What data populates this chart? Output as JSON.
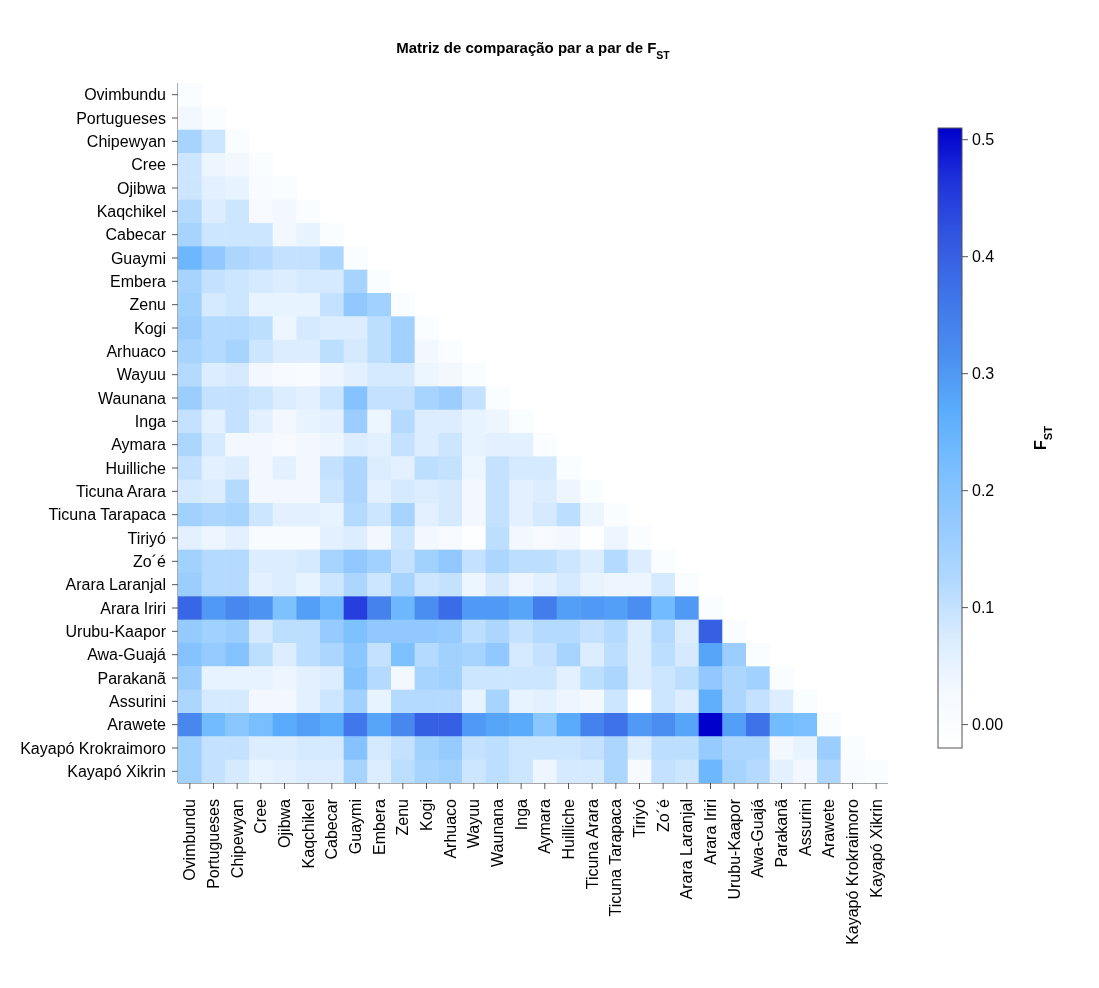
{
  "chart_data": {
    "type": "heatmap",
    "title": "Matriz de comparação par a par de F$_{ST}$",
    "clabel": "F$_{ST}$",
    "categories": [
      "Ovimbundu",
      "Portugueses",
      "Chipewyan",
      "Cree",
      "Ojibwa",
      "Kaqchikel",
      "Cabecar",
      "Guaymi",
      "Embera",
      "Zenu",
      "Kogi",
      "Arhuaco",
      "Wayuu",
      "Waunana",
      "Inga",
      "Aymara",
      "Huilliche",
      "Ticuna Arara",
      "Ticuna Tarapaca",
      "Tiriyó",
      "Zo´é",
      "Arara Laranjal",
      "Arara Iriri",
      "Urubu-Kaapor",
      "Awa-Guajá",
      "Parakanã",
      "Assurini",
      "Arawete",
      "Kayapó Krokraimoro",
      "Kayapó Xikrin"
    ],
    "y_categories": [
      "Ovimbundu",
      "Portugueses",
      "Chipewyan",
      "Cree",
      "Ojibwa",
      "Kaqchikel",
      "Cabecar",
      "Guaymi",
      "Embera",
      "Zenu",
      "Kogi",
      "Arhuaco",
      "Wayuu",
      "Waunana",
      "Inga",
      "Aymara",
      "Huilliche",
      "Ticuna Arara",
      "Ticuna Tarapaca",
      "Tiriyó",
      "Zo´é",
      "Arara Laranjal",
      "Arara Iriri",
      "Urubu-Kaapor",
      "Awa-Guajá",
      "Parakanã",
      "Assurini",
      "Arawete",
      "Kayapó Krokraimoro",
      "Kayapó Xikrin"
    ],
    "cells": [
      [
        0,
        null,
        null,
        null,
        null,
        null,
        null,
        null,
        null,
        null,
        null,
        null,
        null,
        null,
        null,
        null,
        null,
        null,
        null,
        null,
        null,
        null,
        null,
        null,
        null,
        null,
        null,
        null,
        null,
        null
      ],
      [
        0.03,
        0,
        null,
        null,
        null,
        null,
        null,
        null,
        null,
        null,
        null,
        null,
        null,
        null,
        null,
        null,
        null,
        null,
        null,
        null,
        null,
        null,
        null,
        null,
        null,
        null,
        null,
        null,
        null,
        null
      ],
      [
        0.14,
        0.09,
        0,
        null,
        null,
        null,
        null,
        null,
        null,
        null,
        null,
        null,
        null,
        null,
        null,
        null,
        null,
        null,
        null,
        null,
        null,
        null,
        null,
        null,
        null,
        null,
        null,
        null,
        null,
        null
      ],
      [
        0.09,
        0.04,
        0.03,
        0,
        null,
        null,
        null,
        null,
        null,
        null,
        null,
        null,
        null,
        null,
        null,
        null,
        null,
        null,
        null,
        null,
        null,
        null,
        null,
        null,
        null,
        null,
        null,
        null,
        null,
        null
      ],
      [
        0.09,
        0.06,
        0.05,
        0.01,
        0,
        null,
        null,
        null,
        null,
        null,
        null,
        null,
        null,
        null,
        null,
        null,
        null,
        null,
        null,
        null,
        null,
        null,
        null,
        null,
        null,
        null,
        null,
        null,
        null,
        null
      ],
      [
        0.12,
        0.07,
        0.09,
        0.02,
        0.03,
        0,
        null,
        null,
        null,
        null,
        null,
        null,
        null,
        null,
        null,
        null,
        null,
        null,
        null,
        null,
        null,
        null,
        null,
        null,
        null,
        null,
        null,
        null,
        null,
        null
      ],
      [
        0.14,
        0.09,
        0.09,
        0.09,
        0.03,
        0.05,
        0,
        null,
        null,
        null,
        null,
        null,
        null,
        null,
        null,
        null,
        null,
        null,
        null,
        null,
        null,
        null,
        null,
        null,
        null,
        null,
        null,
        null,
        null,
        null
      ],
      [
        0.24,
        0.18,
        0.13,
        0.12,
        0.1,
        0.1,
        0.13,
        0,
        null,
        null,
        null,
        null,
        null,
        null,
        null,
        null,
        null,
        null,
        null,
        null,
        null,
        null,
        null,
        null,
        null,
        null,
        null,
        null,
        null,
        null
      ],
      [
        0.14,
        0.1,
        0.09,
        0.08,
        0.07,
        0.08,
        0.08,
        0.14,
        0,
        null,
        null,
        null,
        null,
        null,
        null,
        null,
        null,
        null,
        null,
        null,
        null,
        null,
        null,
        null,
        null,
        null,
        null,
        null,
        null,
        null
      ],
      [
        0.15,
        0.08,
        0.09,
        0.05,
        0.05,
        0.05,
        0.1,
        0.18,
        0.15,
        0,
        null,
        null,
        null,
        null,
        null,
        null,
        null,
        null,
        null,
        null,
        null,
        null,
        null,
        null,
        null,
        null,
        null,
        null,
        null,
        null
      ],
      [
        0.16,
        0.12,
        0.12,
        0.11,
        0.04,
        0.08,
        0.07,
        0.07,
        0.11,
        0.15,
        0,
        null,
        null,
        null,
        null,
        null,
        null,
        null,
        null,
        null,
        null,
        null,
        null,
        null,
        null,
        null,
        null,
        null,
        null,
        null
      ],
      [
        0.14,
        0.12,
        0.14,
        0.09,
        0.07,
        0.07,
        0.11,
        0.08,
        0.11,
        0.15,
        0.03,
        0,
        null,
        null,
        null,
        null,
        null,
        null,
        null,
        null,
        null,
        null,
        null,
        null,
        null,
        null,
        null,
        null,
        null,
        null
      ],
      [
        0.12,
        0.07,
        0.08,
        0.03,
        0.02,
        0.01,
        0.04,
        0.06,
        0.08,
        0.08,
        0.04,
        0.03,
        0,
        null,
        null,
        null,
        null,
        null,
        null,
        null,
        null,
        null,
        null,
        null,
        null,
        null,
        null,
        null,
        null,
        null
      ],
      [
        0.16,
        0.1,
        0.1,
        0.09,
        0.07,
        0.06,
        0.09,
        0.2,
        0.1,
        0.1,
        0.14,
        0.16,
        0.1,
        0,
        null,
        null,
        null,
        null,
        null,
        null,
        null,
        null,
        null,
        null,
        null,
        null,
        null,
        null,
        null,
        null
      ],
      [
        0.1,
        0.06,
        0.1,
        0.06,
        0.03,
        0.05,
        0.06,
        0.16,
        0.04,
        0.12,
        0.07,
        0.07,
        0.05,
        0.04,
        0,
        null,
        null,
        null,
        null,
        null,
        null,
        null,
        null,
        null,
        null,
        null,
        null,
        null,
        null,
        null
      ],
      [
        0.13,
        0.08,
        0.03,
        0.03,
        0.02,
        0.03,
        0.04,
        0.07,
        0.06,
        0.1,
        0.07,
        0.09,
        0.05,
        0.06,
        0.06,
        0,
        null,
        null,
        null,
        null,
        null,
        null,
        null,
        null,
        null,
        null,
        null,
        null,
        null,
        null
      ],
      [
        0.1,
        0.06,
        0.07,
        0.03,
        0.06,
        0.03,
        0.1,
        0.13,
        0.07,
        0.06,
        0.11,
        0.1,
        0.04,
        0.1,
        0.08,
        0.08,
        0,
        null,
        null,
        null,
        null,
        null,
        null,
        null,
        null,
        null,
        null,
        null,
        null,
        null
      ],
      [
        0.08,
        0.07,
        0.12,
        0.03,
        0.03,
        0.03,
        0.09,
        0.13,
        0.06,
        0.08,
        0.07,
        0.08,
        0.03,
        0.1,
        0.06,
        0.07,
        0.04,
        0,
        null,
        null,
        null,
        null,
        null,
        null,
        null,
        null,
        null,
        null,
        null,
        null
      ],
      [
        0.15,
        0.13,
        0.14,
        0.09,
        0.06,
        0.06,
        0.05,
        0.12,
        0.09,
        0.14,
        0.06,
        0.08,
        0.03,
        0.1,
        0.06,
        0.08,
        0.11,
        0.04,
        0,
        null,
        null,
        null,
        null,
        null,
        null,
        null,
        null,
        null,
        null,
        null
      ],
      [
        0.06,
        0.04,
        0.06,
        0.01,
        0.01,
        0.01,
        0.06,
        0.07,
        0.03,
        0.09,
        0.03,
        0.02,
        -0.01,
        0.11,
        0.03,
        0.02,
        0.03,
        -0.01,
        0.04,
        0,
        null,
        null,
        null,
        null,
        null,
        null,
        null,
        null,
        null,
        null
      ],
      [
        0.15,
        0.12,
        0.12,
        0.07,
        0.07,
        0.08,
        0.14,
        0.18,
        0.15,
        0.1,
        0.15,
        0.18,
        0.1,
        0.13,
        0.11,
        0.11,
        0.09,
        0.07,
        0.12,
        0.07,
        0,
        null,
        null,
        null,
        null,
        null,
        null,
        null,
        null,
        null
      ],
      [
        0.16,
        0.12,
        0.12,
        0.06,
        0.07,
        0.05,
        0.09,
        0.13,
        0.09,
        0.14,
        0.09,
        0.1,
        0.04,
        0.08,
        0.04,
        0.06,
        0.08,
        0.05,
        0.04,
        0.04,
        0.08,
        0,
        null,
        null,
        null,
        null,
        null,
        null,
        null,
        null
      ],
      [
        0.39,
        0.3,
        0.33,
        0.31,
        0.21,
        0.29,
        0.24,
        0.45,
        0.34,
        0.24,
        0.32,
        0.38,
        0.3,
        0.3,
        0.28,
        0.35,
        0.29,
        0.3,
        0.29,
        0.32,
        0.23,
        0.3,
        0,
        null,
        null,
        null,
        null,
        null,
        null,
        null
      ],
      [
        0.17,
        0.15,
        0.16,
        0.08,
        0.11,
        0.11,
        0.17,
        0.21,
        0.18,
        0.18,
        0.18,
        0.17,
        0.11,
        0.13,
        0.1,
        0.12,
        0.12,
        0.1,
        0.12,
        0.07,
        0.12,
        0.07,
        0.4,
        0,
        null,
        null,
        null,
        null,
        null,
        null
      ],
      [
        0.2,
        0.17,
        0.2,
        0.11,
        0.07,
        0.11,
        0.13,
        0.19,
        0.1,
        0.21,
        0.12,
        0.15,
        0.14,
        0.18,
        0.08,
        0.1,
        0.14,
        0.07,
        0.11,
        0.07,
        0.11,
        0.08,
        0.28,
        0.16,
        0,
        null,
        null,
        null,
        null,
        null
      ],
      [
        0.16,
        0.05,
        0.05,
        0.05,
        0.04,
        0.06,
        0.07,
        0.2,
        0.12,
        0.03,
        0.14,
        0.15,
        0.09,
        0.09,
        0.09,
        0.09,
        0.06,
        0.11,
        0.13,
        0.07,
        0.09,
        0.11,
        0.18,
        0.13,
        0.15,
        0,
        null,
        null,
        null,
        null
      ],
      [
        0.13,
        0.08,
        0.08,
        0.03,
        0.03,
        0.06,
        0.09,
        0.15,
        0.05,
        0.12,
        0.12,
        0.12,
        0.05,
        0.14,
        0.05,
        0.06,
        0.04,
        0.03,
        0.09,
        -0.01,
        0.09,
        0.07,
        0.26,
        0.13,
        0.1,
        0.07,
        0,
        null,
        null,
        null
      ],
      [
        0.33,
        0.23,
        0.19,
        0.22,
        0.27,
        0.29,
        0.27,
        0.36,
        0.28,
        0.33,
        0.4,
        0.4,
        0.3,
        0.28,
        0.27,
        0.19,
        0.27,
        0.34,
        0.37,
        0.3,
        0.32,
        0.28,
        0.51,
        0.29,
        0.37,
        0.23,
        0.22,
        0,
        null,
        null
      ],
      [
        0.15,
        0.1,
        0.1,
        0.07,
        0.07,
        0.08,
        0.08,
        0.2,
        0.08,
        0.1,
        0.15,
        0.17,
        0.1,
        0.11,
        0.09,
        0.09,
        0.09,
        0.1,
        0.13,
        0.07,
        0.11,
        0.11,
        0.17,
        0.13,
        0.13,
        0.03,
        0.05,
        0.16,
        0,
        null
      ],
      [
        0.15,
        0.1,
        0.08,
        0.05,
        0.06,
        0.07,
        0.07,
        0.14,
        0.07,
        0.11,
        0.14,
        0.15,
        0.09,
        0.11,
        0.09,
        0.04,
        0.08,
        0.08,
        0.13,
        0.02,
        0.1,
        0.09,
        0.24,
        0.14,
        0.12,
        0.06,
        0.03,
        0.13,
        0.01,
        0
      ]
    ],
    "clim": [
      -0.02,
      0.51
    ],
    "cticks": [
      {
        "value": 0,
        "label": "0.00"
      },
      0.1,
      0.2,
      0.3,
      0.4,
      0.5
    ]
  }
}
